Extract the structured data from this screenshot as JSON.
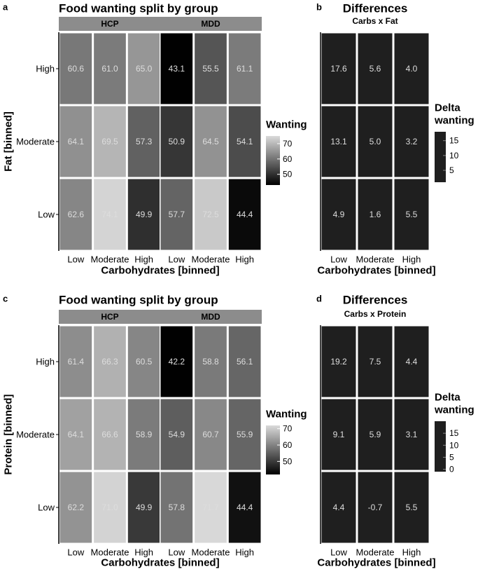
{
  "colors": {
    "panel_strip": "#8c8c8c",
    "cell_border": "#ffffff",
    "diff_cell": "#1f1f1f",
    "text_axis": "#000000",
    "cell_text": "#dddddd"
  },
  "chart_data": [
    {
      "panel": "a",
      "type": "heatmap",
      "title": "Food wanting split by group",
      "xlabel": "Carbohydrates [binned]",
      "ylabel": "Fat [binned]",
      "x_categories": [
        "Low",
        "Moderate",
        "High"
      ],
      "y_categories": [
        "High",
        "Moderate",
        "Low"
      ],
      "facets": [
        {
          "name": "HCP",
          "values": [
            [
              60.6,
              61.0,
              65.0
            ],
            [
              64.1,
              69.5,
              57.3
            ],
            [
              62.6,
              74.1,
              49.9
            ]
          ]
        },
        {
          "name": "MDD",
          "values": [
            [
              43.1,
              55.5,
              61.1
            ],
            [
              50.9,
              64.5,
              54.1
            ],
            [
              57.7,
              72.5,
              44.4
            ]
          ]
        }
      ],
      "legend": {
        "title": "Wanting",
        "ticks": [
          70,
          60,
          50
        ],
        "range": [
          43,
          75
        ]
      }
    },
    {
      "panel": "b",
      "type": "heatmap",
      "title": "Differences",
      "subtitle": "Carbs x Fat",
      "xlabel": "Carbohydrates [binned]",
      "x_categories": [
        "Low",
        "Moderate",
        "High"
      ],
      "y_categories": [
        "High",
        "Moderate",
        "Low"
      ],
      "values": [
        [
          17.6,
          5.6,
          4.0
        ],
        [
          13.1,
          5.0,
          3.2
        ],
        [
          4.9,
          1.6,
          5.5
        ]
      ],
      "legend": {
        "title_lines": [
          "Delta",
          "wanting"
        ],
        "ticks": [
          15,
          10,
          5
        ],
        "range": [
          1,
          18
        ]
      }
    },
    {
      "panel": "c",
      "type": "heatmap",
      "title": "Food wanting split by group",
      "xlabel": "Carbohydrates [binned]",
      "ylabel": "Protein [binned]",
      "x_categories": [
        "Low",
        "Moderate",
        "High"
      ],
      "y_categories": [
        "High",
        "Moderate",
        "Low"
      ],
      "facets": [
        {
          "name": "HCP",
          "values": [
            [
              61.4,
              66.3,
              60.5
            ],
            [
              64.1,
              66.6,
              58.9
            ],
            [
              62.2,
              71.0,
              49.9
            ]
          ]
        },
        {
          "name": "MDD",
          "values": [
            [
              42.2,
              58.8,
              56.1
            ],
            [
              54.9,
              60.7,
              55.9
            ],
            [
              57.8,
              71.7,
              44.4
            ]
          ]
        }
      ],
      "legend": {
        "title": "Wanting",
        "ticks": [
          70,
          60,
          50
        ],
        "range": [
          42,
          72
        ]
      }
    },
    {
      "panel": "d",
      "type": "heatmap",
      "title": "Differences",
      "subtitle": "Carbs x Protein",
      "xlabel": "Carbohydrates [binned]",
      "x_categories": [
        "Low",
        "Moderate",
        "High"
      ],
      "y_categories": [
        "High",
        "Moderate",
        "Low"
      ],
      "values": [
        [
          19.2,
          7.5,
          4.4
        ],
        [
          9.1,
          5.9,
          3.1
        ],
        [
          4.4,
          -0.7,
          5.5
        ]
      ],
      "legend": {
        "title_lines": [
          "Delta",
          "wanting"
        ],
        "ticks": [
          15,
          10,
          5,
          0
        ],
        "range": [
          -1,
          20
        ]
      }
    }
  ]
}
